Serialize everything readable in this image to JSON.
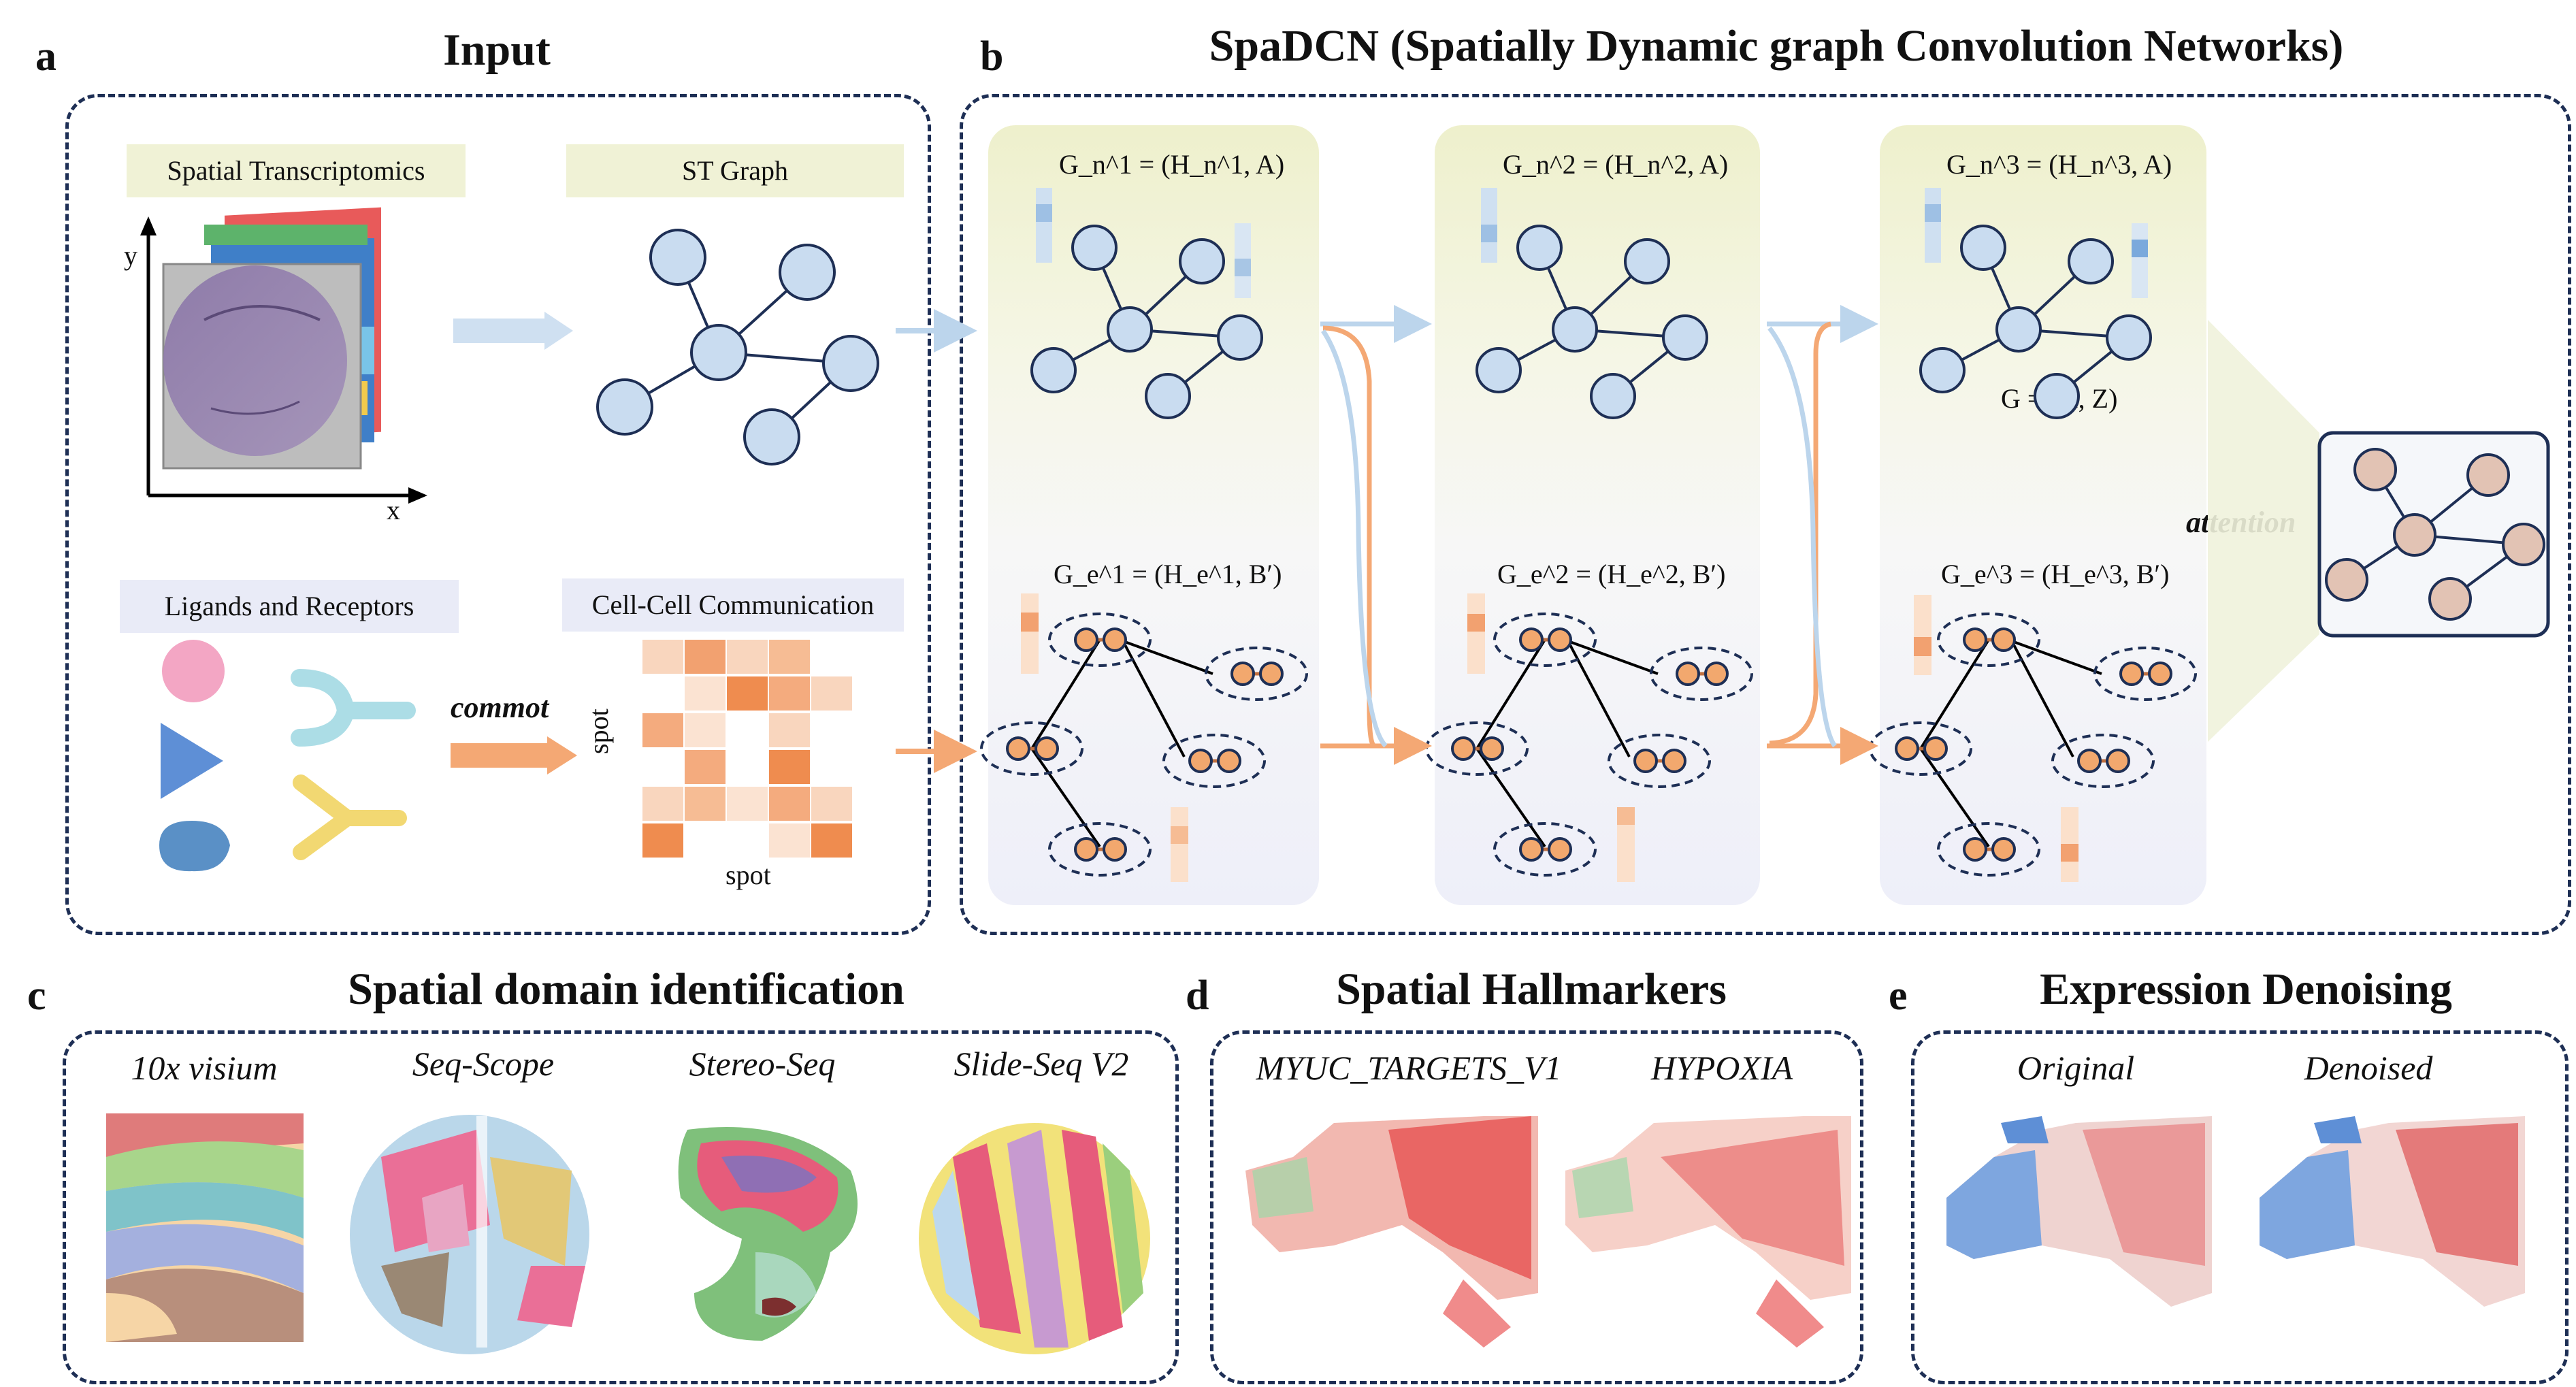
{
  "panels": {
    "a": {
      "letter": "a",
      "title": "Input"
    },
    "b": {
      "letter": "b",
      "title": "SpaDCN (Spatially Dynamic graph Convolution Networks)"
    },
    "c": {
      "letter": "c",
      "title": "Spatial domain identification"
    },
    "d": {
      "letter": "d",
      "title": "Spatial Hallmarkers"
    },
    "e": {
      "letter": "e",
      "title": "Expression Denoising"
    }
  },
  "input": {
    "spatial_transcriptomics": "Spatial Transcriptomics",
    "st_graph": "ST Graph",
    "ligands_receptors": "Ligands and Receptors",
    "cell_cell_communication": "Cell-Cell Communication",
    "commot": "commot",
    "axis_x": "x",
    "axis_y": "y",
    "spot_x": "spot",
    "spot_y": "spot"
  },
  "spadcn": {
    "node_graphs": [
      "G_n^1 = (H_n^1, A)",
      "G_n^2 = (H_n^2, A)",
      "G_n^3 = (H_n^3, A)"
    ],
    "edge_graphs": [
      "G_e^1 = (H_e^1, B′)",
      "G_e^2 = (H_e^2, B′)",
      "G_e^3 = (H_e^3, B′)"
    ],
    "output_graph": "G = (H, Z)",
    "attention": "attention"
  },
  "domain_identification": {
    "datasets": [
      "10x visium",
      "Seq-Scope",
      "Stereo-Seq",
      "Slide-Seq V2"
    ]
  },
  "hallmarkers": {
    "genesets": [
      "MYUC_TARGETS_V1",
      "HYPOXIA"
    ]
  },
  "denoising": {
    "views": [
      "Original",
      "Denoised"
    ]
  },
  "colors": {
    "node_fill": "#c9dcf0",
    "node_stroke": "#1e2f55",
    "edge_node_fill": "#f2a86e",
    "accent_orange": "#f4a874",
    "accent_blue": "#bcd5ec",
    "dash_border": "#1e2f55",
    "output_node_fill": "#e2c3b4"
  }
}
